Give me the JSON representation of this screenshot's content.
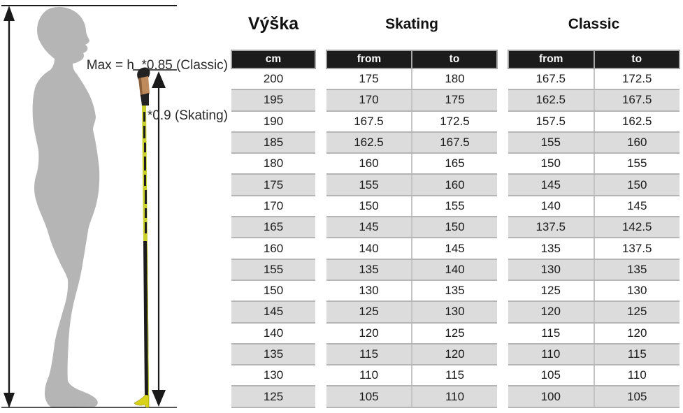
{
  "figure": {
    "annotation": {
      "line1": "Max = h  *0.85 (Classic)",
      "line2": "*0.9 (Skating)"
    },
    "colors": {
      "silhouette": "#b5b5b5",
      "arrow": "#1a1a1a",
      "cork_grip": "#bf8a5c",
      "pole_yellow": "#c9cf2b",
      "pole_tip_yellow": "#d8d31a",
      "pole_black": "#1e1e1e"
    }
  },
  "tables": {
    "height": {
      "title": "Výška",
      "columns": [
        "cm"
      ],
      "rows": [
        [
          "200"
        ],
        [
          "195"
        ],
        [
          "190"
        ],
        [
          "185"
        ],
        [
          "180"
        ],
        [
          "175"
        ],
        [
          "170"
        ],
        [
          "165"
        ],
        [
          "160"
        ],
        [
          "155"
        ],
        [
          "150"
        ],
        [
          "145"
        ],
        [
          "140"
        ],
        [
          "135"
        ],
        [
          "130"
        ],
        [
          "125"
        ]
      ]
    },
    "skating": {
      "title": "Skating",
      "columns": [
        "from",
        "to"
      ],
      "rows": [
        [
          "175",
          "180"
        ],
        [
          "170",
          "175"
        ],
        [
          "167.5",
          "172.5"
        ],
        [
          "162.5",
          "167.5"
        ],
        [
          "160",
          "165"
        ],
        [
          "155",
          "160"
        ],
        [
          "150",
          "155"
        ],
        [
          "145",
          "150"
        ],
        [
          "140",
          "145"
        ],
        [
          "135",
          "140"
        ],
        [
          "130",
          "135"
        ],
        [
          "125",
          "130"
        ],
        [
          "120",
          "125"
        ],
        [
          "115",
          "120"
        ],
        [
          "110",
          "115"
        ],
        [
          "105",
          "110"
        ]
      ]
    },
    "classic": {
      "title": "Classic",
      "columns": [
        "from",
        "to"
      ],
      "rows": [
        [
          "167.5",
          "172.5"
        ],
        [
          "162.5",
          "167.5"
        ],
        [
          "157.5",
          "162.5"
        ],
        [
          "155",
          "160"
        ],
        [
          "150",
          "155"
        ],
        [
          "145",
          "150"
        ],
        [
          "140",
          "145"
        ],
        [
          "137.5",
          "142.5"
        ],
        [
          "135",
          "137.5"
        ],
        [
          "130",
          "135"
        ],
        [
          "125",
          "130"
        ],
        [
          "120",
          "125"
        ],
        [
          "115",
          "120"
        ],
        [
          "110",
          "115"
        ],
        [
          "105",
          "110"
        ],
        [
          "100",
          "105"
        ]
      ]
    }
  },
  "theme": {
    "header_bg": "#1c1c1c",
    "header_text": "#ffffff",
    "row_alt_bg": "#dcdcdc",
    "grid_line": "#b5b5b5",
    "text": "#1a1a1a"
  }
}
